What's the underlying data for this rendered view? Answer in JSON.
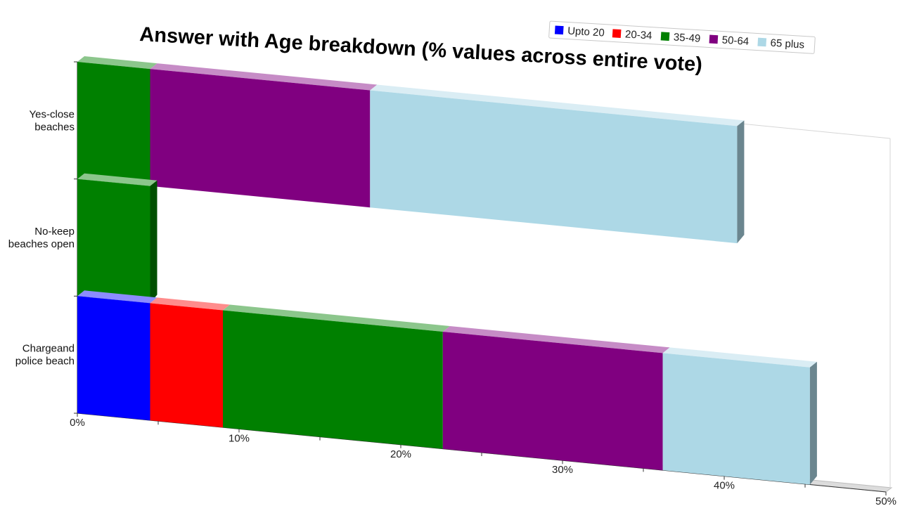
{
  "chart_data": {
    "type": "bar",
    "orientation": "horizontal",
    "stacked": true,
    "three_d": true,
    "title": "Answer with Age breakdown (% values across entire vote)",
    "categories": [
      "Yes-close beaches",
      "No-keep beaches open",
      "Chargeand police beach"
    ],
    "category_lines": [
      [
        "Yes-close",
        "beaches"
      ],
      [
        "No-keep",
        "beaches open"
      ],
      [
        "Chargeand",
        "police beach"
      ]
    ],
    "series": [
      {
        "name": "Upto 20",
        "color": "#0000ff",
        "values": [
          0,
          0,
          4.5
        ]
      },
      {
        "name": "20-34",
        "color": "#ff0000",
        "values": [
          0,
          0,
          4.5
        ]
      },
      {
        "name": "35-49",
        "color": "#008000",
        "values": [
          4.5,
          4.5,
          13.6
        ]
      },
      {
        "name": "50-64",
        "color": "#800080",
        "values": [
          13.6,
          0,
          13.6
        ]
      },
      {
        "name": "65 plus",
        "color": "#add8e6",
        "values": [
          22.7,
          0,
          9.1
        ]
      }
    ],
    "xlim": [
      0,
      50
    ],
    "x_ticks": [
      "0%",
      "10%",
      "20%",
      "30%",
      "40%",
      "50%"
    ],
    "legend_position": "top-right",
    "grid": false
  }
}
